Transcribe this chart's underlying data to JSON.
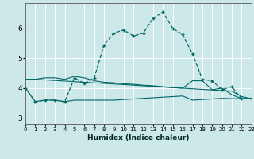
{
  "xlabel": "Humidex (Indice chaleur)",
  "bg_color": "#cce8e8",
  "grid_color": "#ffffff",
  "line_color": "#006666",
  "xlim": [
    0,
    23
  ],
  "ylim": [
    2.8,
    6.85
  ],
  "xticks": [
    0,
    1,
    2,
    3,
    4,
    5,
    6,
    7,
    8,
    9,
    10,
    11,
    12,
    13,
    14,
    15,
    16,
    17,
    18,
    19,
    20,
    21,
    22,
    23
  ],
  "yticks": [
    3,
    4,
    5,
    6
  ],
  "main_x": [
    0,
    1,
    2,
    3,
    4,
    5,
    6,
    7,
    8,
    9,
    10,
    11,
    12,
    13,
    14,
    15,
    16,
    17,
    18,
    19,
    20,
    21,
    22,
    23
  ],
  "main_y": [
    4.0,
    3.55,
    3.6,
    3.6,
    3.55,
    4.35,
    4.15,
    4.35,
    5.45,
    5.85,
    5.95,
    5.75,
    5.85,
    6.35,
    6.55,
    6.0,
    5.8,
    5.15,
    4.3,
    4.25,
    3.95,
    4.05,
    3.65,
    3.65
  ],
  "upper_x": [
    0,
    1,
    2,
    3,
    4,
    5,
    6,
    7,
    8,
    9,
    10,
    11,
    12,
    13,
    14,
    15,
    16,
    17,
    18,
    19,
    20,
    21,
    22,
    23
  ],
  "upper_y": [
    4.3,
    4.3,
    4.35,
    4.35,
    4.3,
    4.4,
    4.35,
    4.25,
    4.2,
    4.18,
    4.15,
    4.13,
    4.1,
    4.08,
    4.05,
    4.02,
    4.0,
    4.25,
    4.25,
    3.95,
    4.0,
    3.78,
    3.65,
    3.65
  ],
  "lower_x": [
    0,
    1,
    2,
    3,
    4,
    5,
    6,
    7,
    8,
    9,
    10,
    11,
    12,
    13,
    14,
    15,
    16,
    17,
    18,
    19,
    20,
    21,
    22,
    23
  ],
  "lower_y": [
    4.0,
    3.55,
    3.6,
    3.6,
    3.55,
    3.6,
    3.6,
    3.6,
    3.6,
    3.6,
    3.62,
    3.64,
    3.66,
    3.68,
    3.7,
    3.72,
    3.74,
    3.6,
    3.62,
    3.64,
    3.66,
    3.65,
    3.65,
    3.65
  ],
  "decline_x": [
    0,
    1,
    2,
    3,
    4,
    5,
    6,
    7,
    8,
    9,
    10,
    11,
    12,
    13,
    14,
    15,
    16,
    17,
    18,
    19,
    20,
    21,
    22,
    23
  ],
  "decline_y": [
    4.3,
    4.3,
    4.28,
    4.26,
    4.24,
    4.22,
    4.2,
    4.18,
    4.16,
    4.14,
    4.12,
    4.1,
    4.08,
    4.06,
    4.04,
    4.02,
    4.0,
    3.98,
    3.96,
    3.94,
    3.92,
    3.9,
    3.72,
    3.65
  ]
}
